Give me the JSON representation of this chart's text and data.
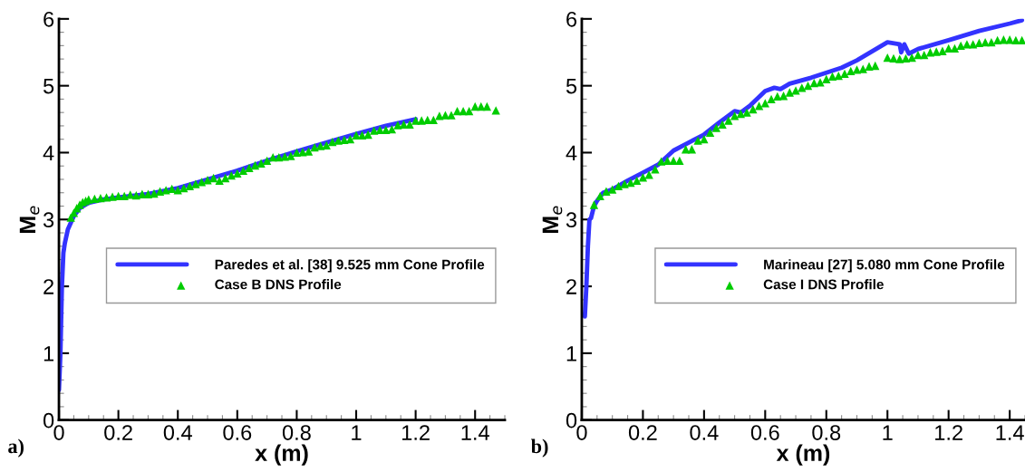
{
  "chart_data": [
    {
      "type": "line",
      "xlabel": "x (m)",
      "ylabel": "M$_{e}$",
      "annotations": [
        "a)"
      ],
      "xlim": [
        0,
        1.5
      ],
      "ylim": [
        0,
        6
      ],
      "xticks": [
        0,
        0.2,
        0.4,
        0.6,
        0.8,
        1,
        1.2,
        1.4
      ],
      "yticks": [
        0,
        1,
        2,
        3,
        4,
        5,
        6
      ],
      "grid": false,
      "legend": "center right",
      "series": [
        {
          "name": "Paredes et al. [38] 9.525 mm Cone Profile",
          "type": "line",
          "color": "#3333ff",
          "marker": "none",
          "line_style": "solid",
          "x": [
            0,
            0.005,
            0.01,
            0.015,
            0.02,
            0.03,
            0.05,
            0.07,
            0.1,
            0.15,
            0.2,
            0.3,
            0.4,
            0.5,
            0.6,
            0.7,
            0.8,
            0.9,
            1.0,
            1.1,
            1.2
          ],
          "values": [
            0.45,
            1.0,
            2.0,
            2.5,
            2.65,
            2.85,
            3.05,
            3.17,
            3.25,
            3.3,
            3.33,
            3.38,
            3.47,
            3.6,
            3.73,
            3.88,
            4.02,
            4.15,
            4.28,
            4.4,
            4.5
          ]
        },
        {
          "name": "Case B DNS Profile",
          "type": "scatter",
          "color": "#00cc00",
          "marker": "triangle",
          "x": [
            0.04,
            0.05,
            0.06,
            0.07,
            0.08,
            0.09,
            0.1,
            0.12,
            0.14,
            0.16,
            0.18,
            0.2,
            0.22,
            0.24,
            0.26,
            0.28,
            0.3,
            0.32,
            0.34,
            0.36,
            0.38,
            0.4,
            0.42,
            0.44,
            0.46,
            0.48,
            0.5,
            0.52,
            0.54,
            0.56,
            0.58,
            0.6,
            0.62,
            0.64,
            0.66,
            0.68,
            0.7,
            0.72,
            0.74,
            0.76,
            0.78,
            0.8,
            0.82,
            0.84,
            0.86,
            0.88,
            0.9,
            0.92,
            0.94,
            0.96,
            0.98,
            1.0,
            1.02,
            1.04,
            1.06,
            1.08,
            1.1,
            1.12,
            1.14,
            1.16,
            1.18,
            1.2,
            1.22,
            1.24,
            1.26,
            1.28,
            1.3,
            1.32,
            1.34,
            1.36,
            1.38,
            1.4,
            1.42,
            1.44,
            1.47
          ],
          "values": [
            3.03,
            3.1,
            3.17,
            3.22,
            3.26,
            3.28,
            3.3,
            3.31,
            3.32,
            3.33,
            3.34,
            3.35,
            3.35,
            3.37,
            3.36,
            3.38,
            3.38,
            3.39,
            3.42,
            3.44,
            3.46,
            3.44,
            3.47,
            3.5,
            3.53,
            3.56,
            3.59,
            3.62,
            3.58,
            3.62,
            3.66,
            3.69,
            3.73,
            3.77,
            3.81,
            3.84,
            3.88,
            3.93,
            3.93,
            3.94,
            3.95,
            4.0,
            4.01,
            4.02,
            4.08,
            4.1,
            4.11,
            4.16,
            4.18,
            4.19,
            4.2,
            4.26,
            4.26,
            4.27,
            4.33,
            4.34,
            4.34,
            4.35,
            4.41,
            4.42,
            4.42,
            4.48,
            4.48,
            4.49,
            4.49,
            4.55,
            4.56,
            4.56,
            4.62,
            4.62,
            4.62,
            4.69,
            4.69,
            4.69,
            4.63
          ]
        }
      ]
    },
    {
      "type": "line",
      "xlabel": "x (m)",
      "ylabel": "M$_{e}$",
      "annotations": [
        "b)"
      ],
      "xlim": [
        0,
        1.45
      ],
      "ylim": [
        0,
        6
      ],
      "xticks": [
        0,
        0.2,
        0.4,
        0.6,
        0.8,
        1,
        1.2,
        1.4
      ],
      "yticks": [
        0,
        1,
        2,
        3,
        4,
        5,
        6
      ],
      "grid": false,
      "legend": "center right",
      "series": [
        {
          "name": "Marineau [27] 5.080 mm Cone Profile",
          "type": "line",
          "color": "#3333ff",
          "marker": "none",
          "line_style": "solid",
          "x": [
            0.01,
            0.015,
            0.02,
            0.025,
            0.03,
            0.04,
            0.05,
            0.07,
            0.1,
            0.15,
            0.2,
            0.25,
            0.3,
            0.35,
            0.4,
            0.45,
            0.5,
            0.52,
            0.55,
            0.6,
            0.63,
            0.65,
            0.68,
            0.75,
            0.85,
            0.9,
            1.0,
            1.04,
            1.045,
            1.055,
            1.07,
            1.1,
            1.2,
            1.3,
            1.4,
            1.44
          ],
          "values": [
            1.55,
            2.0,
            2.6,
            3.0,
            3.02,
            3.2,
            3.28,
            3.4,
            3.45,
            3.58,
            3.7,
            3.82,
            4.03,
            4.15,
            4.27,
            4.45,
            4.62,
            4.6,
            4.7,
            4.92,
            4.97,
            4.95,
            5.03,
            5.12,
            5.27,
            5.38,
            5.65,
            5.62,
            5.5,
            5.62,
            5.48,
            5.55,
            5.68,
            5.82,
            5.93,
            5.98
          ]
        },
        {
          "name": "Case I DNS Profile",
          "type": "scatter",
          "color": "#00cc00",
          "marker": "triangle",
          "x": [
            0.04,
            0.06,
            0.08,
            0.1,
            0.12,
            0.14,
            0.16,
            0.18,
            0.2,
            0.22,
            0.24,
            0.26,
            0.28,
            0.3,
            0.32,
            0.34,
            0.36,
            0.38,
            0.4,
            0.42,
            0.44,
            0.46,
            0.48,
            0.5,
            0.52,
            0.54,
            0.56,
            0.58,
            0.6,
            0.62,
            0.64,
            0.66,
            0.68,
            0.7,
            0.72,
            0.74,
            0.76,
            0.78,
            0.8,
            0.82,
            0.84,
            0.86,
            0.88,
            0.9,
            0.92,
            0.94,
            0.96,
            1.0,
            1.02,
            1.04,
            1.06,
            1.08,
            1.1,
            1.12,
            1.14,
            1.16,
            1.18,
            1.2,
            1.22,
            1.24,
            1.26,
            1.28,
            1.3,
            1.32,
            1.34,
            1.36,
            1.38,
            1.4,
            1.42,
            1.44
          ],
          "values": [
            3.22,
            3.35,
            3.42,
            3.45,
            3.5,
            3.53,
            3.55,
            3.58,
            3.63,
            3.67,
            3.75,
            3.87,
            3.88,
            3.88,
            3.88,
            4.05,
            4.05,
            4.18,
            4.2,
            4.3,
            4.37,
            4.42,
            4.48,
            4.55,
            4.58,
            4.6,
            4.65,
            4.7,
            4.74,
            4.8,
            4.84,
            4.85,
            4.9,
            4.93,
            4.97,
            5.0,
            5.04,
            5.05,
            5.1,
            5.14,
            5.15,
            5.18,
            5.22,
            5.24,
            5.25,
            5.29,
            5.3,
            5.42,
            5.41,
            5.4,
            5.41,
            5.42,
            5.46,
            5.46,
            5.5,
            5.51,
            5.52,
            5.56,
            5.56,
            5.6,
            5.62,
            5.62,
            5.64,
            5.65,
            5.65,
            5.68,
            5.69,
            5.69,
            5.68,
            5.68
          ]
        }
      ]
    }
  ]
}
